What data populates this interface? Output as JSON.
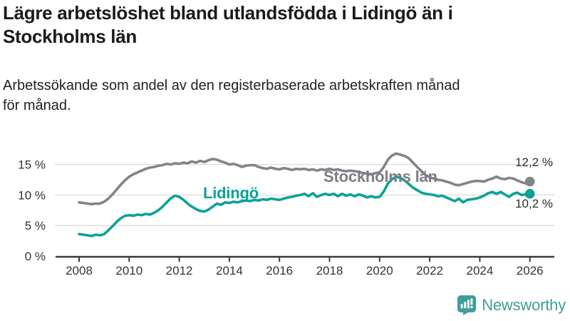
{
  "header": {
    "title": "Lägre arbetslöshet bland utlandsfödda i Lidingö än i\nStockholms län",
    "subtitle": "Arbetssökande som andel av den registerbaserade arbetskraften månad\nför månad."
  },
  "chart_data": {
    "type": "line",
    "title": "Lägre arbetslöshet bland utlandsfödda i Lidingö än i Stockholms län",
    "subtitle": "Arbetssökande som andel av den registerbaserade arbetskraften månad för månad.",
    "x_start_year": 2008,
    "x_step_years": 0.16667,
    "x_end_year": 2026,
    "xlim": [
      2007.05,
      2026.95
    ],
    "ylim": [
      0,
      17.5
    ],
    "y_ticks": [
      0,
      5,
      10,
      15
    ],
    "y_tick_labels": [
      "0 %",
      "5 %",
      "10 %",
      "15 %"
    ],
    "y_gridlines": [
      5,
      10,
      15
    ],
    "x_tick_years": [
      2008,
      2010,
      2012,
      2014,
      2016,
      2018,
      2020,
      2022,
      2024,
      2026
    ],
    "x_tick_labels": [
      "2008",
      "2010",
      "2012",
      "2014",
      "2016",
      "2018",
      "2020",
      "2022",
      "2024",
      "2026"
    ],
    "grid": "horizontal",
    "legend_position": "inline-labels",
    "colors": {
      "axis": "#3a3a3a",
      "grid": "#dcdcdc",
      "tick_text": "#333333"
    },
    "series": [
      {
        "name": "Stockholms län",
        "color": "#83838b",
        "end_label": "12,2 %",
        "end_value": 12.2,
        "values": [
          8.8,
          8.7,
          8.6,
          8.5,
          8.6,
          8.6,
          8.9,
          9.4,
          10.1,
          10.9,
          11.7,
          12.4,
          13.0,
          13.4,
          13.7,
          14.0,
          14.3,
          14.5,
          14.6,
          14.8,
          14.9,
          15.1,
          15.0,
          15.2,
          15.1,
          15.3,
          15.2,
          15.5,
          15.3,
          15.6,
          15.4,
          15.7,
          15.9,
          15.8,
          15.5,
          15.3,
          15.0,
          15.1,
          14.9,
          14.6,
          14.8,
          14.9,
          14.9,
          14.6,
          14.4,
          14.3,
          14.5,
          14.3,
          14.2,
          14.4,
          14.3,
          14.1,
          14.3,
          14.2,
          14.3,
          14.1,
          14.2,
          14.0,
          14.2,
          14.1,
          14.3,
          14.1,
          14.2,
          14.0,
          13.9,
          14.0,
          13.9,
          13.8,
          13.6,
          13.5,
          13.4,
          13.6,
          13.7,
          14.6,
          15.8,
          16.5,
          16.8,
          16.6,
          16.4,
          16.0,
          15.3,
          14.6,
          13.9,
          13.3,
          12.9,
          12.7,
          12.5,
          12.4,
          12.2,
          12.0,
          11.7,
          11.6,
          11.8,
          12.0,
          12.2,
          12.3,
          12.3,
          12.2,
          12.5,
          12.7,
          13.0,
          12.7,
          12.6,
          12.8,
          12.7,
          12.4,
          12.1,
          11.9,
          12.2
        ]
      },
      {
        "name": "Lidingö",
        "color": "#0ba29a",
        "end_label": "10,2 %",
        "end_value": 10.2,
        "values": [
          3.6,
          3.5,
          3.4,
          3.3,
          3.5,
          3.4,
          3.6,
          4.2,
          4.9,
          5.6,
          6.2,
          6.6,
          6.7,
          6.6,
          6.8,
          6.7,
          6.9,
          6.8,
          7.1,
          7.5,
          8.1,
          8.8,
          9.5,
          9.9,
          9.7,
          9.2,
          8.6,
          8.1,
          7.7,
          7.4,
          7.3,
          7.6,
          8.1,
          8.6,
          8.4,
          8.8,
          8.7,
          8.9,
          8.8,
          9.0,
          9.1,
          9.0,
          9.2,
          9.1,
          9.3,
          9.2,
          9.4,
          9.3,
          9.2,
          9.4,
          9.6,
          9.7,
          9.9,
          10.0,
          10.2,
          9.8,
          10.3,
          9.7,
          10.0,
          10.2,
          10.0,
          10.2,
          9.8,
          10.2,
          9.9,
          10.1,
          9.8,
          10.1,
          9.9,
          9.6,
          9.8,
          9.6,
          9.7,
          10.6,
          11.9,
          12.6,
          13.0,
          12.8,
          12.4,
          11.8,
          11.2,
          10.8,
          10.4,
          10.2,
          10.1,
          10.0,
          9.8,
          9.9,
          9.6,
          9.3,
          9.0,
          9.4,
          8.8,
          9.2,
          9.3,
          9.4,
          9.6,
          9.9,
          10.3,
          10.5,
          10.2,
          10.5,
          10.1,
          9.7,
          10.2,
          10.4,
          10.0,
          10.1,
          10.2
        ]
      }
    ]
  },
  "footer": {
    "brand": "Newsworthy",
    "brand_color": "#3f9e9a"
  }
}
